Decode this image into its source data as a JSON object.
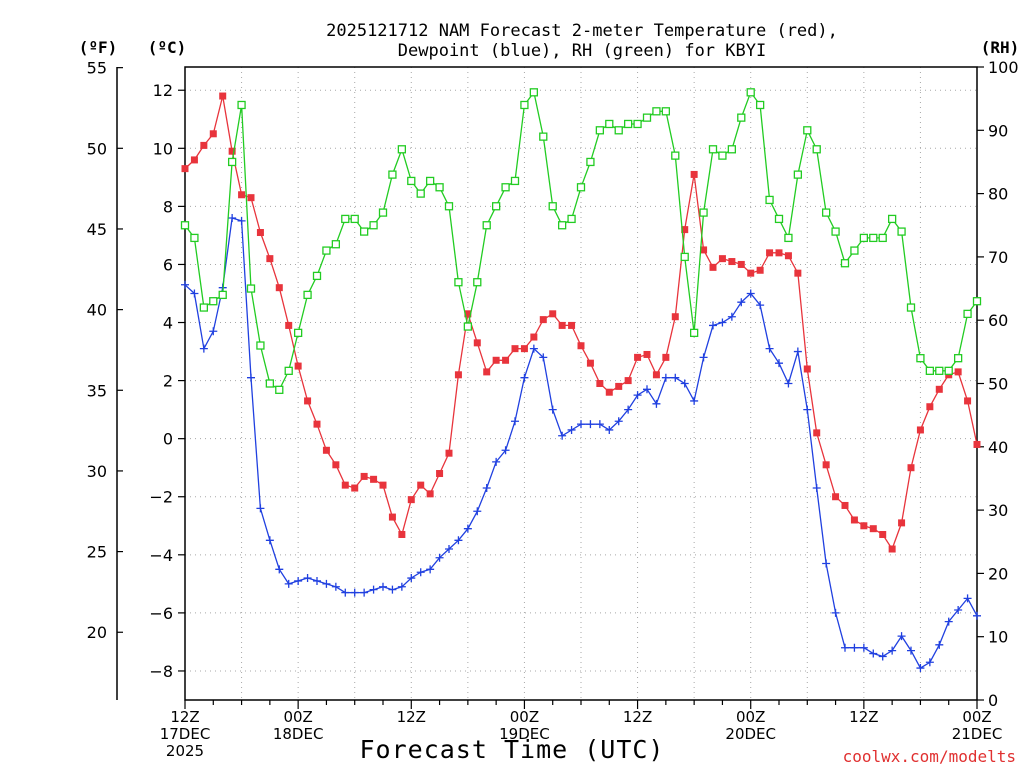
{
  "chart_data": {
    "type": "line",
    "title": [
      "2025121712 NAM Forecast 2-meter Temperature (red),",
      "Dewpoint (blue), RH (green) for KBYI"
    ],
    "xlabel": "Forecast Time (UTC)",
    "credit": "coolwx.com/modelts",
    "units": {
      "fahrenheit": "(ºF)",
      "celsius": "(ºC)",
      "rh": "(RH)"
    },
    "x_hours": [
      0,
      1,
      2,
      3,
      4,
      5,
      6,
      7,
      8,
      9,
      10,
      11,
      12,
      13,
      14,
      15,
      16,
      17,
      18,
      19,
      20,
      21,
      22,
      23,
      24,
      25,
      26,
      27,
      28,
      29,
      30,
      31,
      32,
      33,
      34,
      35,
      36,
      37,
      38,
      39,
      40,
      41,
      42,
      43,
      44,
      45,
      46,
      47,
      48,
      49,
      50,
      51,
      52,
      53,
      54,
      55,
      56,
      57,
      58,
      59,
      60,
      61,
      62,
      63,
      64,
      65,
      66,
      67,
      68,
      69,
      70,
      71,
      72,
      73,
      74,
      75,
      76,
      77,
      78,
      79,
      80,
      81,
      82,
      83,
      84
    ],
    "x_ticks": [
      {
        "hour": 0,
        "lines": [
          "12Z",
          "17DEC",
          "2025"
        ]
      },
      {
        "hour": 12,
        "lines": [
          "00Z",
          "18DEC"
        ]
      },
      {
        "hour": 24,
        "lines": [
          "12Z"
        ]
      },
      {
        "hour": 36,
        "lines": [
          "00Z",
          "19DEC"
        ]
      },
      {
        "hour": 48,
        "lines": [
          "12Z"
        ]
      },
      {
        "hour": 60,
        "lines": [
          "00Z",
          "20DEC"
        ]
      },
      {
        "hour": 72,
        "lines": [
          "12Z"
        ]
      },
      {
        "hour": 84,
        "lines": [
          "00Z",
          "21DEC"
        ]
      }
    ],
    "celsius_axis": {
      "range": [
        -9,
        12.8
      ],
      "ticks": [
        12,
        10,
        8,
        6,
        4,
        2,
        0,
        -2,
        -4,
        -6,
        -8
      ],
      "tick_labels": [
        "12",
        "10",
        "8",
        "6",
        "4",
        "2",
        "0",
        "−2",
        "−4",
        "−6",
        "−8"
      ]
    },
    "fahrenheit_axis": {
      "ticks": [
        55,
        50,
        45,
        40,
        35,
        30,
        25,
        20
      ],
      "tick_labels": [
        "55",
        "50",
        "45",
        "40",
        "35",
        "30",
        "25",
        "20"
      ]
    },
    "rh_axis": {
      "range": [
        0,
        100
      ],
      "ticks": [
        100,
        90,
        80,
        70,
        60,
        50,
        40,
        30,
        20,
        10,
        0
      ],
      "tick_labels": [
        "100",
        "90",
        "80",
        "70",
        "60",
        "50",
        "40",
        "30",
        "20",
        "10",
        "0"
      ]
    },
    "series": [
      {
        "name": "Temperature",
        "units": "C",
        "color": "#e8343c",
        "marker": "filled-square",
        "values": [
          9.3,
          9.6,
          10.1,
          10.5,
          11.8,
          9.9,
          8.4,
          8.3,
          7.1,
          6.2,
          5.2,
          3.9,
          2.5,
          1.3,
          0.5,
          -0.4,
          -0.9,
          -1.6,
          -1.7,
          -1.3,
          -1.4,
          -1.6,
          -2.7,
          -3.3,
          -2.1,
          -1.6,
          -1.9,
          -1.2,
          -0.5,
          2.2,
          4.3,
          3.3,
          2.3,
          2.7,
          2.7,
          3.1,
          3.1,
          3.5,
          4.1,
          4.3,
          3.9,
          3.9,
          3.2,
          2.6,
          1.9,
          1.6,
          1.8,
          2.0,
          2.8,
          2.9,
          2.2,
          2.8,
          4.2,
          7.2,
          9.1,
          6.5,
          5.9,
          6.2,
          6.1,
          6.0,
          5.7,
          5.8,
          6.4,
          6.4,
          6.3,
          5.7,
          2.4,
          0.2,
          -0.9,
          -2.0,
          -2.3,
          -2.8,
          -3.0,
          -3.1,
          -3.3,
          -3.8,
          -2.9,
          -1.0,
          0.3,
          1.1,
          1.7,
          2.2,
          2.3,
          1.3,
          -0.2
        ]
      },
      {
        "name": "Dewpoint",
        "units": "C",
        "color": "#2040e0",
        "marker": "plus",
        "values": [
          5.3,
          5.0,
          3.1,
          3.7,
          5.2,
          7.6,
          7.5,
          2.1,
          -2.4,
          -3.5,
          -4.5,
          -5.0,
          -4.9,
          -4.8,
          -4.9,
          -5.0,
          -5.1,
          -5.3,
          -5.3,
          -5.3,
          -5.2,
          -5.1,
          -5.2,
          -5.1,
          -4.8,
          -4.6,
          -4.5,
          -4.1,
          -3.8,
          -3.5,
          -3.1,
          -2.5,
          -1.7,
          -0.8,
          -0.4,
          0.6,
          2.1,
          3.1,
          2.8,
          1.0,
          0.1,
          0.3,
          0.5,
          0.5,
          0.5,
          0.3,
          0.6,
          1.0,
          1.5,
          1.7,
          1.2,
          2.1,
          2.1,
          1.9,
          1.3,
          2.8,
          3.9,
          4.0,
          4.2,
          4.7,
          5.0,
          4.6,
          3.1,
          2.6,
          1.9,
          3.0,
          1.0,
          -1.7,
          -4.3,
          -6.0,
          -7.2,
          -7.2,
          -7.2,
          -7.4,
          -7.5,
          -7.3,
          -6.8,
          -7.3,
          -7.9,
          -7.7,
          -7.1,
          -6.3,
          -5.9,
          -5.5,
          -6.1
        ]
      },
      {
        "name": "RH",
        "units": "%",
        "color": "#22cc22",
        "marker": "open-square",
        "values": [
          75,
          73,
          62,
          63,
          64,
          85,
          94,
          65,
          56,
          50,
          49,
          52,
          58,
          64,
          67,
          71,
          72,
          76,
          76,
          74,
          75,
          77,
          83,
          87,
          82,
          80,
          82,
          81,
          78,
          66,
          59,
          66,
          75,
          78,
          81,
          82,
          94,
          96,
          89,
          78,
          75,
          76,
          81,
          85,
          90,
          91,
          90,
          91,
          91,
          92,
          93,
          93,
          86,
          70,
          58,
          77,
          87,
          86,
          87,
          92,
          96,
          94,
          79,
          76,
          73,
          83,
          90,
          87,
          77,
          74,
          69,
          71,
          73,
          73,
          73,
          76,
          74,
          62,
          54,
          52,
          52,
          52,
          54,
          61,
          63
        ]
      }
    ]
  }
}
